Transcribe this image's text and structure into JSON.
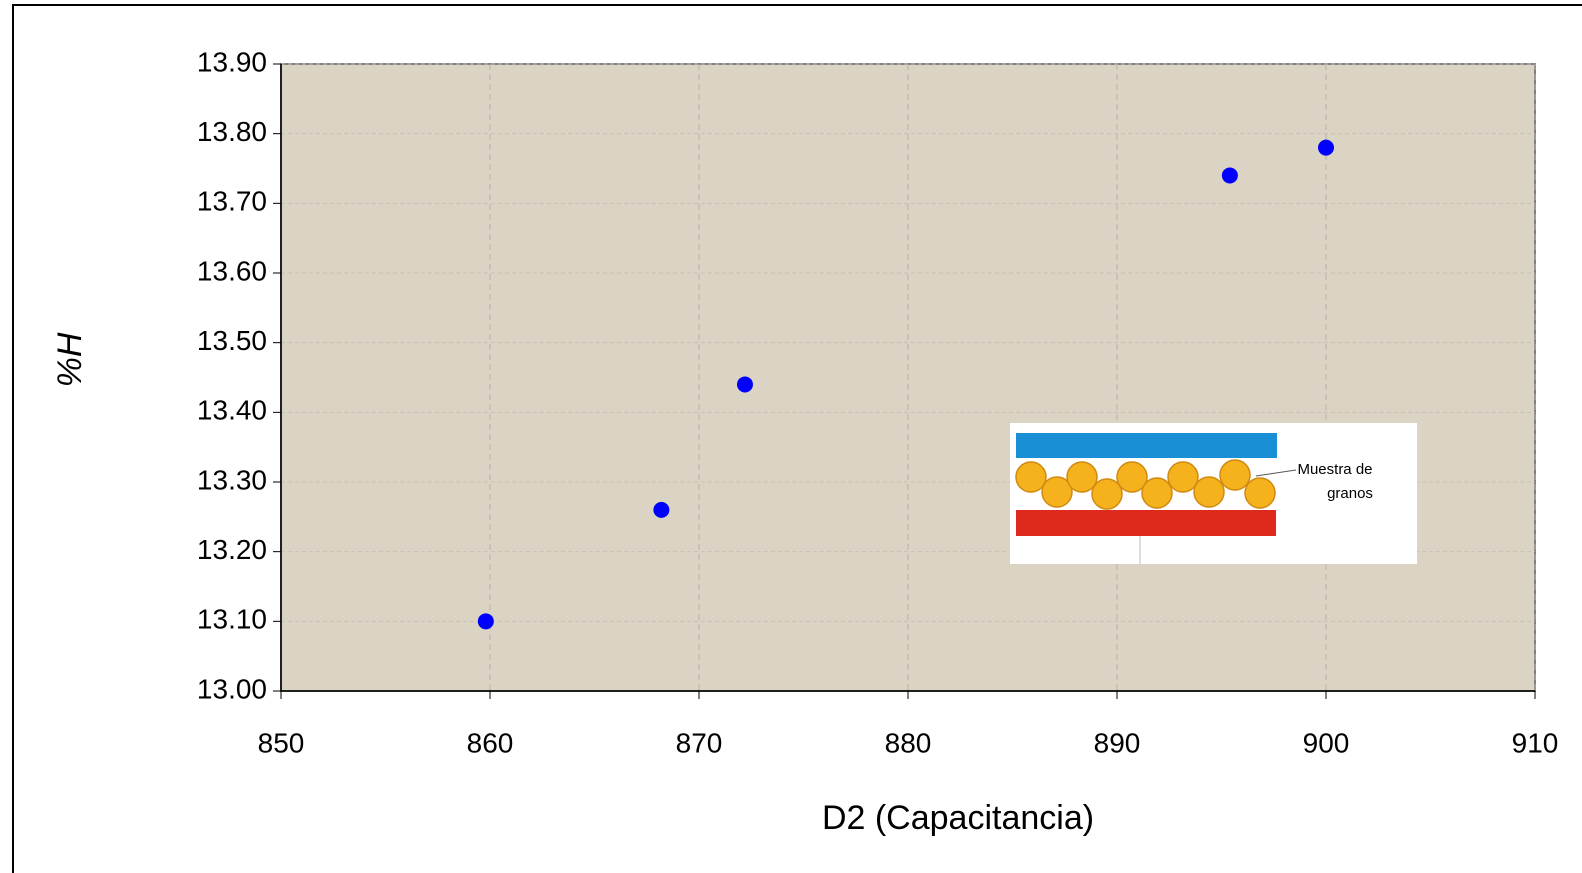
{
  "chart_data": {
    "type": "scatter",
    "xlabel": "D2 (Capacitancia)",
    "ylabel": "%H",
    "x": [
      859.8,
      868.2,
      872.2,
      895.4,
      900.0
    ],
    "series": [
      {
        "color": "#0000ff",
        "values": [
          13.1,
          13.26,
          13.44,
          13.74,
          13.78
        ]
      }
    ],
    "xlim": [
      850,
      910
    ],
    "xticks": [
      850,
      860,
      870,
      880,
      890,
      900,
      910
    ],
    "ylim": [
      13.0,
      13.9
    ],
    "yticks": [
      {
        "value": 13.0,
        "label": "13.00"
      },
      {
        "value": 13.1,
        "label": "13.10"
      },
      {
        "value": 13.2,
        "label": "13.20"
      },
      {
        "value": 13.3,
        "label": "13.30"
      },
      {
        "value": 13.4,
        "label": "13.40"
      },
      {
        "value": 13.5,
        "label": "13.50"
      },
      {
        "value": 13.6,
        "label": "13.60"
      },
      {
        "value": 13.7,
        "label": "13.70"
      },
      {
        "value": 13.8,
        "label": "13.80"
      },
      {
        "value": 13.9,
        "label": "13.90"
      }
    ],
    "grid": true,
    "annotations": [
      "Muestra de",
      "granos"
    ]
  }
}
